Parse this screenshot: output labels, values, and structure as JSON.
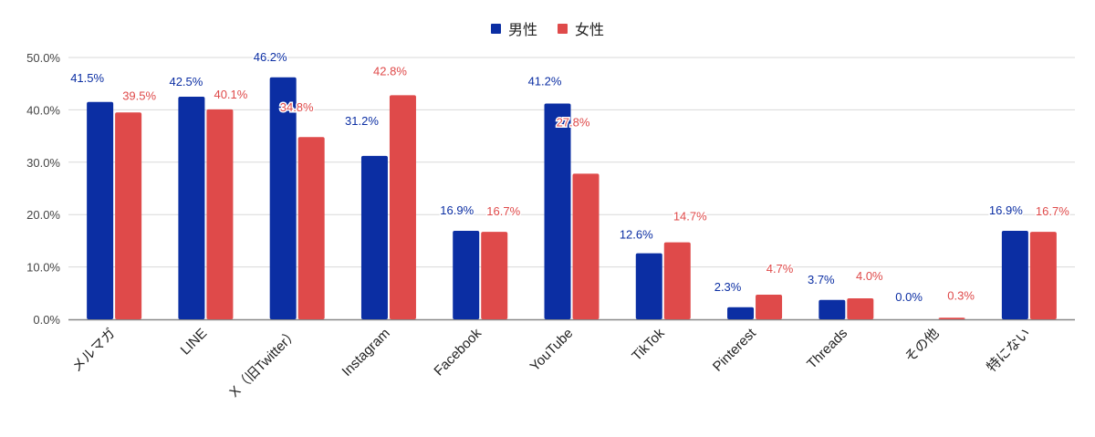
{
  "chart_data": {
    "type": "bar",
    "title": "",
    "xlabel": "",
    "ylabel": "",
    "ylim": [
      0,
      50
    ],
    "yticks": [
      "0.0%",
      "10.0%",
      "20.0%",
      "30.0%",
      "40.0%",
      "50.0%"
    ],
    "grid": true,
    "legend_position": "top",
    "categories": [
      "メルマガ",
      "LINE",
      "X（旧Twitter）",
      "Instagram",
      "Facebook",
      "YouTube",
      "TikTok",
      "Pinterest",
      "Threads",
      "その他",
      "特にない"
    ],
    "series": [
      {
        "name": "男性",
        "color": "#0b2ea3",
        "values": [
          41.5,
          42.5,
          46.2,
          31.2,
          16.9,
          41.2,
          12.6,
          2.3,
          3.7,
          0.0,
          16.9
        ],
        "labels": [
          "41.5%",
          "42.5%",
          "46.2%",
          "31.2%",
          "16.9%",
          "41.2%",
          "12.6%",
          "2.3%",
          "3.7%",
          "0.0%",
          "16.9%"
        ]
      },
      {
        "name": "女性",
        "color": "#df4a4a",
        "values": [
          39.5,
          40.1,
          34.8,
          42.8,
          16.7,
          27.8,
          14.7,
          4.7,
          4.0,
          0.3,
          16.7
        ],
        "labels": [
          "39.5%",
          "40.1%",
          "34.8%",
          "42.8%",
          "16.7%",
          "27.8%",
          "14.7%",
          "4.7%",
          "4.0%",
          "0.3%",
          "16.7%"
        ]
      }
    ]
  },
  "legend": {
    "male_label": "男性",
    "female_label": "女性"
  }
}
